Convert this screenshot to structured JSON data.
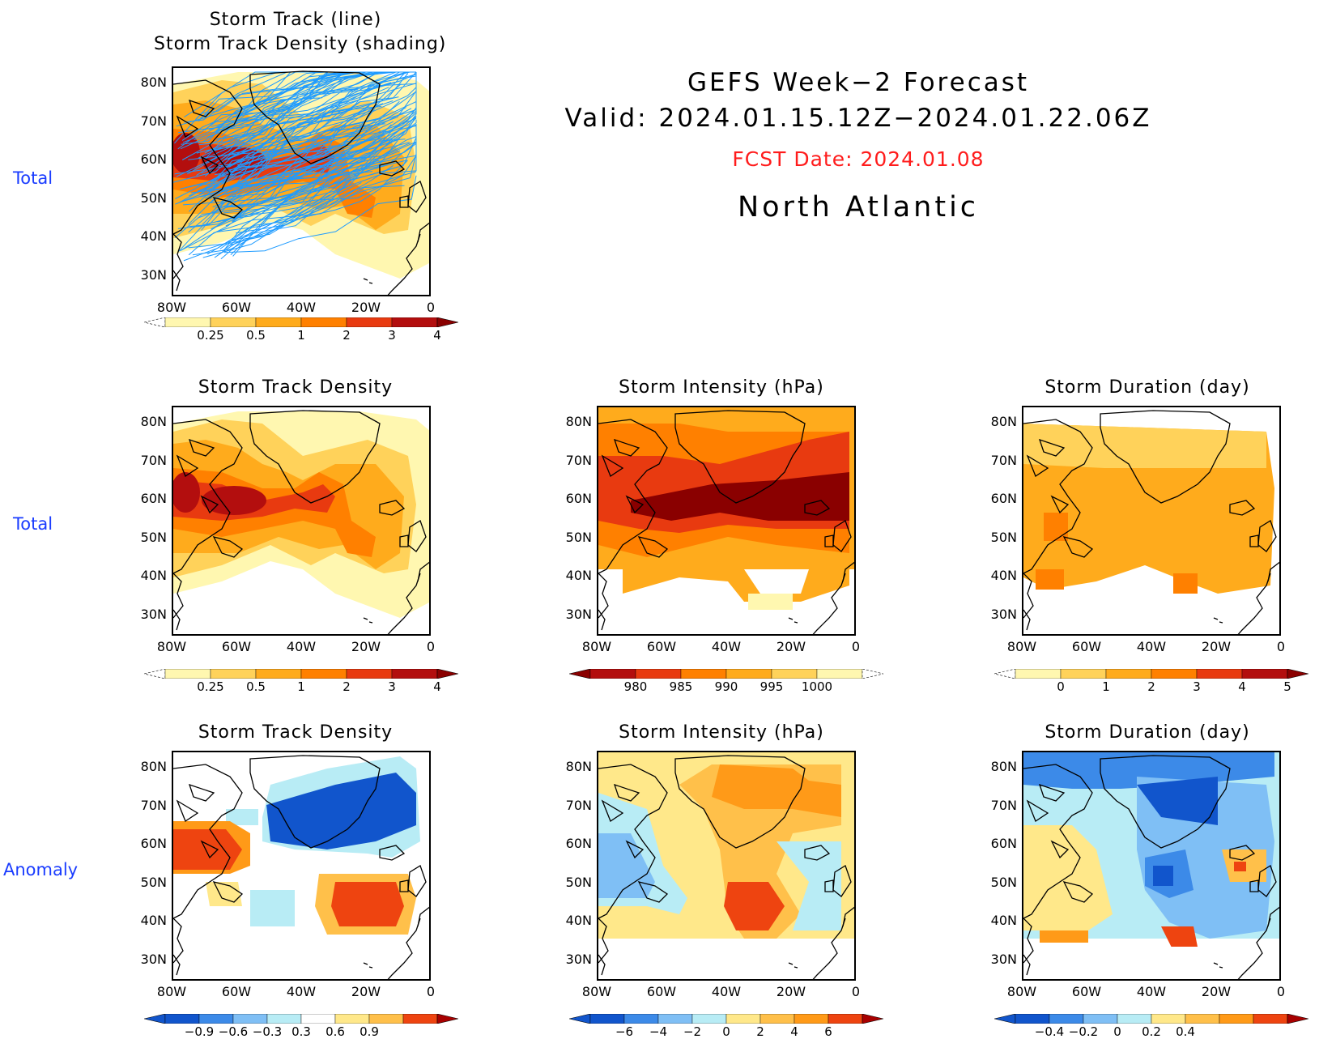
{
  "header": {
    "line1": "GEFS Week−2 Forecast",
    "line2": "Valid: 2024.01.15.12Z−2024.01.22.06Z",
    "fcst": "FCST Date: 2024.01.08",
    "region": "North Atlantic"
  },
  "row_labels": [
    "Total",
    "Total",
    "Anomaly"
  ],
  "lat_ticks": [
    "80N",
    "70N",
    "60N",
    "50N",
    "40N",
    "30N"
  ],
  "lon_ticks": [
    "80W",
    "60W",
    "40W",
    "20W",
    "0"
  ],
  "panels": [
    {
      "id": "track",
      "title_line1": "Storm Track (line)",
      "title_line2": "Storm Track Density (shading)",
      "cbar": [
        "0.25",
        "0.5",
        "1",
        "2",
        "3",
        "4"
      ],
      "palette": "warm"
    },
    {
      "id": "density-total",
      "title": "Storm Track Density",
      "cbar": [
        "0.25",
        "0.5",
        "1",
        "2",
        "3",
        "4"
      ],
      "palette": "warm"
    },
    {
      "id": "intensity-total",
      "title": "Storm Intensity (hPa)",
      "cbar": [
        "980",
        "985",
        "990",
        "995",
        "1000"
      ],
      "palette": "warm-rev"
    },
    {
      "id": "duration-total",
      "title": "Storm Duration (day)",
      "cbar": [
        "0",
        "1",
        "2",
        "3",
        "4",
        "5"
      ],
      "palette": "warm"
    },
    {
      "id": "density-anom",
      "title": "Storm Track Density",
      "cbar": [
        "−0.9",
        "−0.6",
        "−0.3",
        "0.3",
        "0.6",
        "0.9"
      ],
      "palette": "div"
    },
    {
      "id": "intensity-anom",
      "title": "Storm Intensity (hPa)",
      "cbar": [
        "−6",
        "−4",
        "−2",
        "0",
        "2",
        "4",
        "6"
      ],
      "palette": "div"
    },
    {
      "id": "duration-anom",
      "title": "Storm Duration (day)",
      "cbar": [
        "−0.4",
        "−0.2",
        "0",
        "0.2",
        "0.4"
      ],
      "palette": "div"
    }
  ],
  "colors": {
    "warm": [
      "#fff7b0",
      "#ffd25a",
      "#ffab1c",
      "#ff8000",
      "#e83a10",
      "#b30e0e",
      "#8a0000"
    ],
    "blue_track": "#1e9bff",
    "div": [
      "#1155cc",
      "#3c8ae8",
      "#7fbff5",
      "#b8ecf5",
      "#ffffff",
      "#ffe88a",
      "#ffc04a",
      "#ff9a18",
      "#ee4410",
      "#a80000"
    ]
  }
}
